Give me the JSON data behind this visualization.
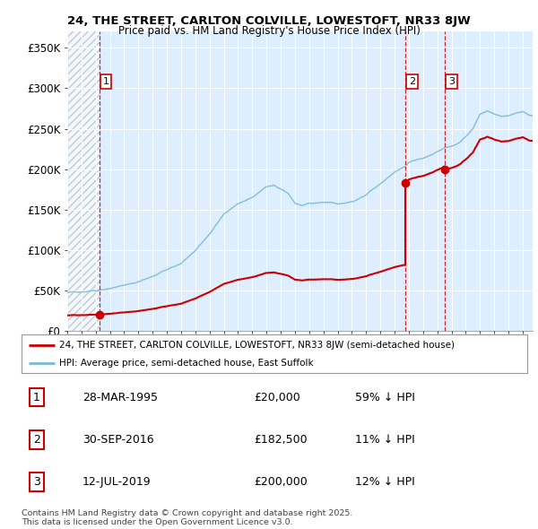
{
  "title_line1": "24, THE STREET, CARLTON COLVILLE, LOWESTOFT, NR33 8JW",
  "title_line2": "Price paid vs. HM Land Registry's House Price Index (HPI)",
  "ylim": [
    0,
    370000
  ],
  "yticks": [
    0,
    50000,
    100000,
    150000,
    200000,
    250000,
    300000,
    350000
  ],
  "ytick_labels": [
    "£0",
    "£50K",
    "£100K",
    "£150K",
    "£200K",
    "£250K",
    "£300K",
    "£350K"
  ],
  "xlim_start": 1993.0,
  "xlim_end": 2025.7,
  "hpi_color": "#7ab8d9",
  "price_color": "#cc0000",
  "dashed_color": "#cc0000",
  "bg_plot_color": "#ddeeff",
  "hatch_region_end": 1995.24,
  "purchases": [
    {
      "label": "1",
      "date_num": 1995.24,
      "price": 20000
    },
    {
      "label": "2",
      "date_num": 2016.75,
      "price": 182500
    },
    {
      "label": "3",
      "date_num": 2019.53,
      "price": 200000
    }
  ],
  "hpi_keyframes_t": [
    1993.0,
    1994.0,
    1995.0,
    1996.0,
    1997.0,
    1998.0,
    1999.0,
    2000.0,
    2001.0,
    2002.0,
    2003.0,
    2004.0,
    2005.0,
    2006.0,
    2007.0,
    2007.5,
    2008.0,
    2008.5,
    2009.0,
    2009.5,
    2010.0,
    2011.0,
    2012.0,
    2013.0,
    2014.0,
    2015.0,
    2016.0,
    2016.75,
    2017.0,
    2017.5,
    2018.0,
    2018.5,
    2019.0,
    2019.53,
    2020.0,
    2020.5,
    2021.0,
    2021.5,
    2022.0,
    2022.5,
    2023.0,
    2023.5,
    2024.0,
    2024.5,
    2025.0,
    2025.5
  ],
  "hpi_keyframes_v": [
    47000,
    48000,
    49500,
    52000,
    57000,
    62000,
    68000,
    76000,
    84000,
    100000,
    120000,
    145000,
    158000,
    165000,
    178000,
    180000,
    175000,
    170000,
    158000,
    155000,
    158000,
    160000,
    158000,
    162000,
    170000,
    183000,
    198000,
    205000,
    210000,
    213000,
    215000,
    218000,
    222000,
    227000,
    228000,
    232000,
    240000,
    250000,
    268000,
    272000,
    268000,
    265000,
    265000,
    268000,
    270000,
    265000
  ],
  "legend_line1": "24, THE STREET, CARLTON COLVILLE, LOWESTOFT, NR33 8JW (semi-detached house)",
  "legend_line2": "HPI: Average price, semi-detached house, East Suffolk",
  "table_data": [
    [
      "1",
      "28-MAR-1995",
      "£20,000",
      "59% ↓ HPI"
    ],
    [
      "2",
      "30-SEP-2016",
      "£182,500",
      "11% ↓ HPI"
    ],
    [
      "3",
      "12-JUL-2019",
      "£200,000",
      "12% ↓ HPI"
    ]
  ],
  "footnote": "Contains HM Land Registry data © Crown copyright and database right 2025.\nThis data is licensed under the Open Government Licence v3.0."
}
